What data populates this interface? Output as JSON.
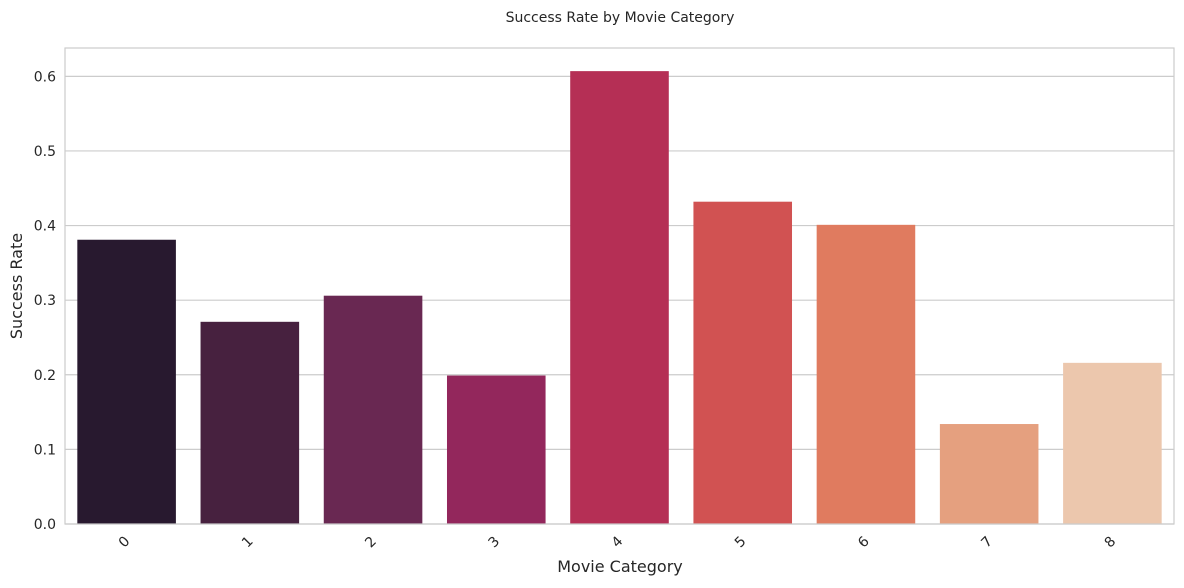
{
  "chart_data": {
    "type": "bar",
    "title": "Success Rate by Movie Category",
    "xlabel": "Movie Category",
    "ylabel": "Success Rate",
    "categories": [
      "0",
      "1",
      "2",
      "3",
      "4",
      "5",
      "6",
      "7",
      "8"
    ],
    "values": [
      0.381,
      0.271,
      0.306,
      0.199,
      0.607,
      0.432,
      0.401,
      0.134,
      0.216
    ],
    "colors": [
      "#28192f",
      "#47213f",
      "#692852",
      "#93275c",
      "#b52f55",
      "#d15252",
      "#e07b5f",
      "#e5a07f",
      "#ecc7ad"
    ],
    "ylim": [
      0,
      0.638
    ],
    "yticks": [
      0.0,
      0.1,
      0.2,
      0.3,
      0.4,
      0.5,
      0.6
    ],
    "ytick_labels": [
      "0.0",
      "0.1",
      "0.2",
      "0.3",
      "0.4",
      "0.5",
      "0.6"
    ],
    "grid": "y",
    "x_tick_rotation_deg": 45,
    "grid_color": "#cccccc",
    "spine_color": "#cccccc"
  }
}
